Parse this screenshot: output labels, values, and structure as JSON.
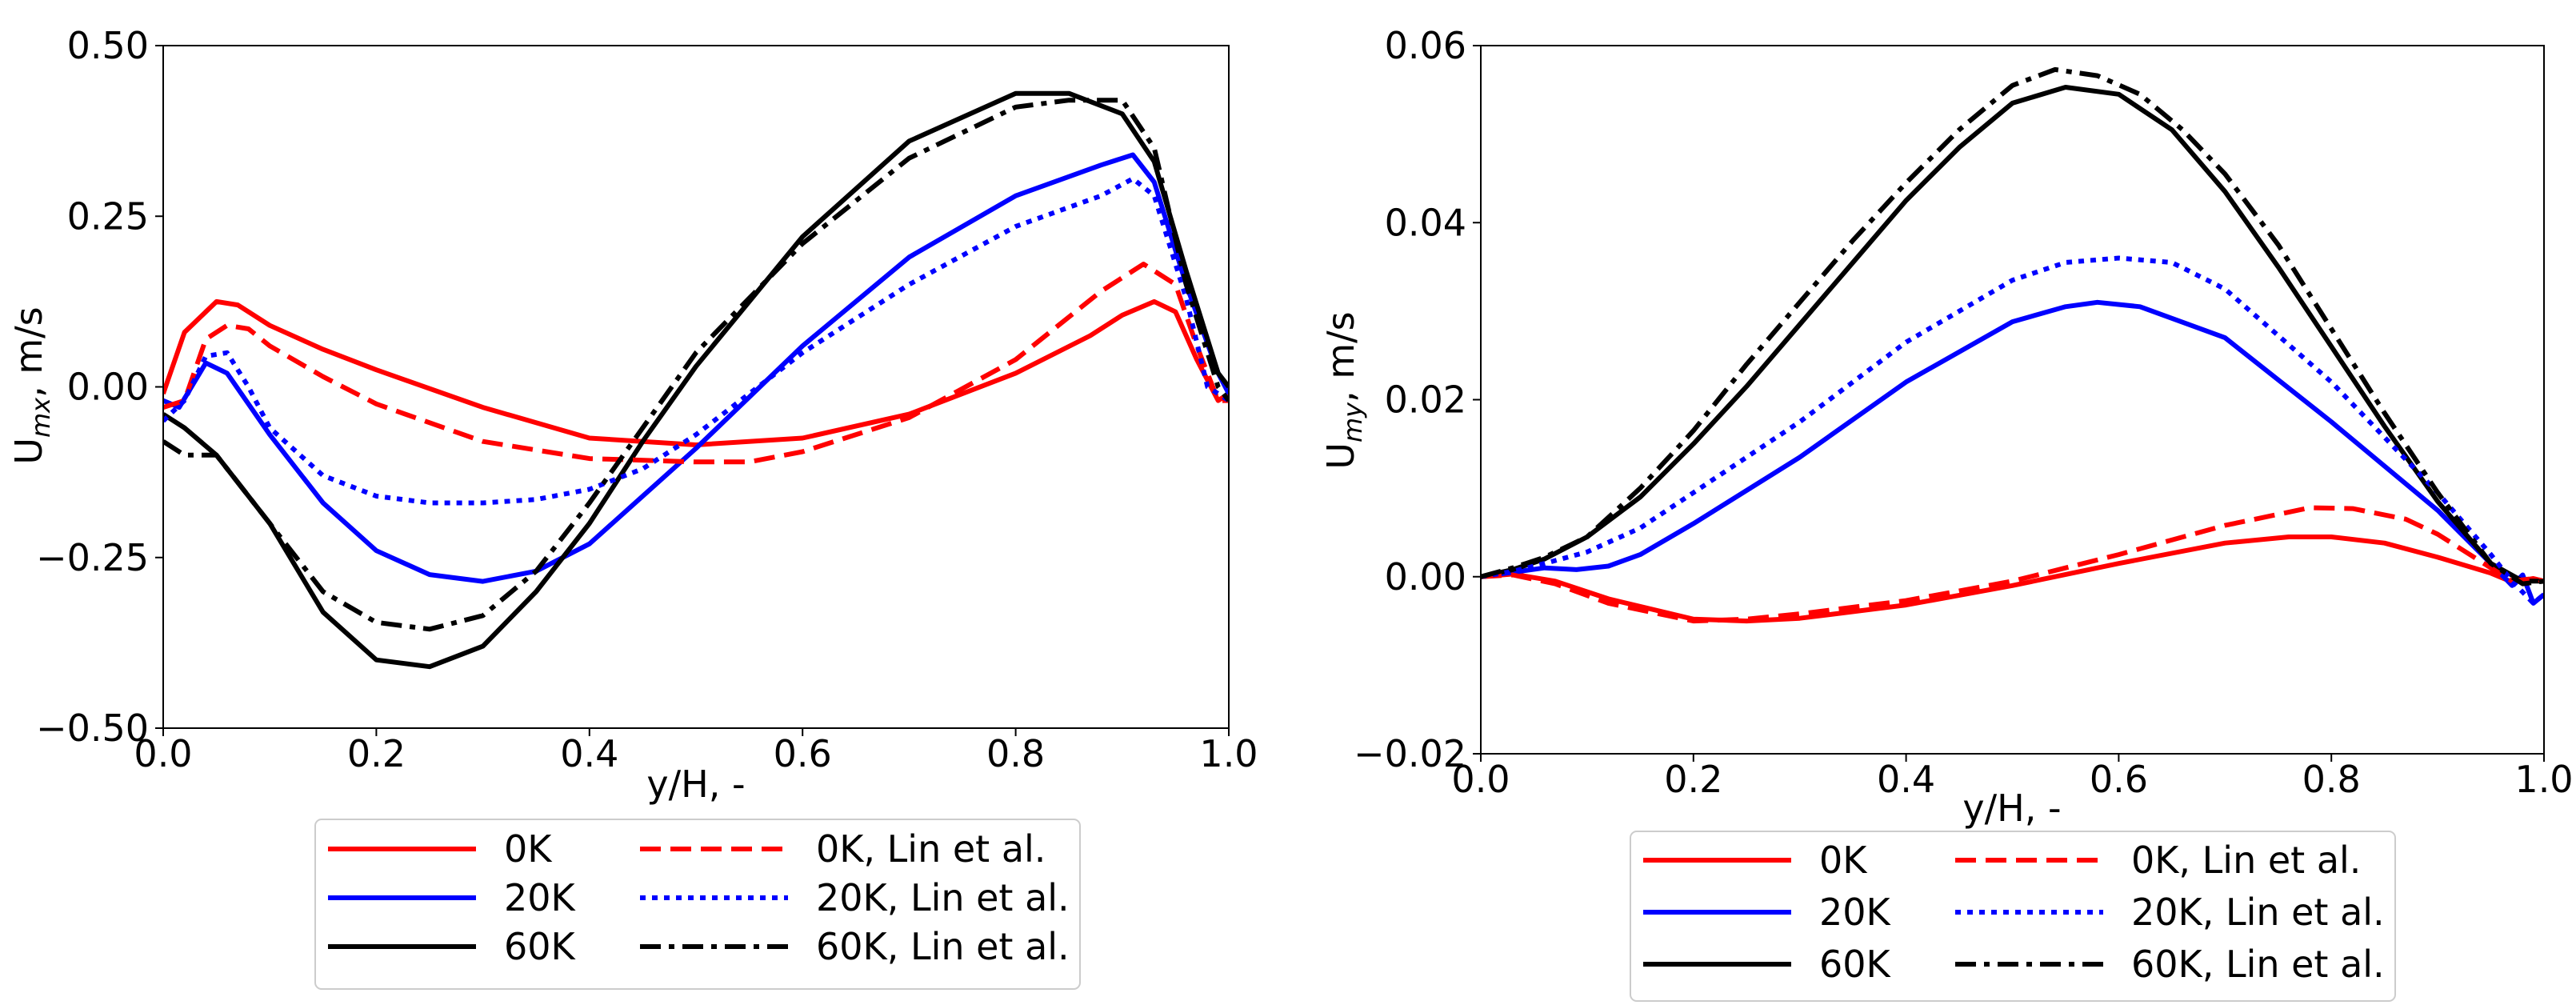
{
  "chart_data": [
    {
      "type": "line",
      "xlabel": "y/H, -",
      "ylabel_main": "U",
      "ylabel_sub": "mx",
      "ylabel_tail": ", m/s",
      "xlim": [
        0.0,
        1.0
      ],
      "ylim": [
        -0.5,
        0.5
      ],
      "xticks": [
        0.0,
        0.2,
        0.4,
        0.6,
        0.8,
        1.0
      ],
      "xtick_labels": [
        "0.0",
        "0.2",
        "0.4",
        "0.6",
        "0.8",
        "1.0"
      ],
      "yticks": [
        -0.5,
        -0.25,
        0.0,
        0.25,
        0.5
      ],
      "ytick_labels": [
        "−0.50",
        "−0.25",
        "0.00",
        "0.25",
        "0.50"
      ],
      "series": [
        {
          "name": "0K",
          "color": "#ff0000",
          "style": "solid",
          "x": [
            0,
            0.02,
            0.05,
            0.07,
            0.1,
            0.15,
            0.2,
            0.3,
            0.4,
            0.5,
            0.6,
            0.7,
            0.8,
            0.87,
            0.9,
            0.93,
            0.95,
            0.97,
            0.99,
            1.0
          ],
          "y": [
            -0.01,
            0.08,
            0.125,
            0.12,
            0.09,
            0.055,
            0.025,
            -0.03,
            -0.075,
            -0.085,
            -0.075,
            -0.04,
            0.02,
            0.075,
            0.105,
            0.125,
            0.11,
            0.04,
            -0.02,
            -0.01
          ]
        },
        {
          "name": "20K",
          "color": "#0000ff",
          "style": "solid",
          "x": [
            0,
            0.015,
            0.04,
            0.06,
            0.1,
            0.15,
            0.2,
            0.25,
            0.3,
            0.35,
            0.4,
            0.5,
            0.6,
            0.7,
            0.8,
            0.88,
            0.91,
            0.93,
            0.96,
            0.99,
            1.0
          ],
          "y": [
            -0.02,
            -0.03,
            0.035,
            0.02,
            -0.07,
            -0.17,
            -0.24,
            -0.275,
            -0.285,
            -0.27,
            -0.23,
            -0.09,
            0.06,
            0.19,
            0.28,
            0.325,
            0.34,
            0.3,
            0.15,
            0.02,
            -0.01
          ]
        },
        {
          "name": "60K",
          "color": "#000000",
          "style": "solid",
          "x": [
            0,
            0.02,
            0.05,
            0.1,
            0.15,
            0.2,
            0.25,
            0.3,
            0.35,
            0.4,
            0.45,
            0.5,
            0.6,
            0.7,
            0.8,
            0.85,
            0.9,
            0.93,
            0.96,
            0.99,
            1.0
          ],
          "y": [
            -0.04,
            -0.06,
            -0.1,
            -0.2,
            -0.33,
            -0.4,
            -0.41,
            -0.38,
            -0.3,
            -0.2,
            -0.08,
            0.03,
            0.22,
            0.36,
            0.43,
            0.43,
            0.4,
            0.33,
            0.17,
            0.02,
            0.0
          ]
        },
        {
          "name": "0K, Lin et al.",
          "color": "#ff0000",
          "style": "dashed",
          "x": [
            0,
            0.02,
            0.04,
            0.06,
            0.08,
            0.1,
            0.15,
            0.2,
            0.3,
            0.4,
            0.5,
            0.55,
            0.6,
            0.7,
            0.8,
            0.88,
            0.92,
            0.95,
            0.97,
            0.99,
            1.0
          ],
          "y": [
            -0.03,
            -0.02,
            0.07,
            0.09,
            0.085,
            0.06,
            0.015,
            -0.025,
            -0.08,
            -0.105,
            -0.11,
            -0.11,
            -0.095,
            -0.045,
            0.04,
            0.14,
            0.18,
            0.15,
            0.06,
            -0.02,
            -0.02
          ]
        },
        {
          "name": "20K, Lin et al.",
          "color": "#0000ff",
          "style": "dotted",
          "x": [
            0,
            0.02,
            0.04,
            0.06,
            0.08,
            0.1,
            0.15,
            0.2,
            0.25,
            0.3,
            0.35,
            0.4,
            0.45,
            0.5,
            0.6,
            0.7,
            0.8,
            0.88,
            0.91,
            0.93,
            0.96,
            0.98,
            1.0
          ],
          "y": [
            -0.05,
            -0.02,
            0.045,
            0.05,
            0.0,
            -0.06,
            -0.13,
            -0.16,
            -0.17,
            -0.17,
            -0.165,
            -0.15,
            -0.12,
            -0.07,
            0.05,
            0.15,
            0.235,
            0.28,
            0.305,
            0.28,
            0.13,
            0.0,
            -0.02
          ]
        },
        {
          "name": "60K, Lin et al.",
          "color": "#000000",
          "style": "dashdot",
          "x": [
            0,
            0.02,
            0.05,
            0.1,
            0.15,
            0.2,
            0.25,
            0.3,
            0.35,
            0.4,
            0.45,
            0.5,
            0.6,
            0.7,
            0.8,
            0.85,
            0.9,
            0.93,
            0.96,
            0.99,
            1.0
          ],
          "y": [
            -0.08,
            -0.1,
            -0.1,
            -0.2,
            -0.3,
            -0.345,
            -0.355,
            -0.335,
            -0.27,
            -0.17,
            -0.06,
            0.05,
            0.21,
            0.335,
            0.41,
            0.42,
            0.42,
            0.35,
            0.15,
            0.0,
            -0.02
          ]
        }
      ],
      "legend": {
        "position": "bottom",
        "entries": [
          "0K",
          "20K",
          "60K",
          "0K, Lin et al.",
          "20K, Lin et al.",
          "60K, Lin et al."
        ]
      }
    },
    {
      "type": "line",
      "xlabel": "y/H, -",
      "ylabel_main": "U",
      "ylabel_sub": "my",
      "ylabel_tail": ", m/s",
      "xlim": [
        0.0,
        1.0
      ],
      "ylim": [
        -0.02,
        0.06
      ],
      "xticks": [
        0.0,
        0.2,
        0.4,
        0.6,
        0.8,
        1.0
      ],
      "xtick_labels": [
        "0.0",
        "0.2",
        "0.4",
        "0.6",
        "0.8",
        "1.0"
      ],
      "yticks": [
        -0.02,
        0.0,
        0.02,
        0.04,
        0.06
      ],
      "ytick_labels": [
        "−0.02",
        "0.00",
        "0.02",
        "0.04",
        "0.06"
      ],
      "series": [
        {
          "name": "0K",
          "color": "#ff0000",
          "style": "solid",
          "x": [
            0,
            0.03,
            0.07,
            0.12,
            0.2,
            0.25,
            0.3,
            0.4,
            0.5,
            0.6,
            0.7,
            0.76,
            0.8,
            0.85,
            0.9,
            0.95,
            0.97,
            0.99,
            1.0
          ],
          "y": [
            0,
            0.0003,
            -0.0005,
            -0.0025,
            -0.0048,
            -0.005,
            -0.0047,
            -0.0032,
            -0.001,
            0.0015,
            0.0038,
            0.0045,
            0.0045,
            0.0038,
            0.0022,
            0.0004,
            -0.0006,
            -0.0002,
            -0.0005
          ]
        },
        {
          "name": "20K",
          "color": "#0000ff",
          "style": "solid",
          "x": [
            0,
            0.03,
            0.06,
            0.09,
            0.12,
            0.15,
            0.2,
            0.3,
            0.4,
            0.5,
            0.55,
            0.58,
            0.62,
            0.7,
            0.8,
            0.9,
            0.95,
            0.97,
            0.98,
            0.99,
            1.0
          ],
          "y": [
            0,
            0.0005,
            0.001,
            0.0008,
            0.0012,
            0.0025,
            0.006,
            0.0135,
            0.022,
            0.0288,
            0.0305,
            0.031,
            0.0305,
            0.027,
            0.0175,
            0.0075,
            0.0015,
            -0.001,
            0.0002,
            -0.003,
            -0.002
          ]
        },
        {
          "name": "60K",
          "color": "#000000",
          "style": "solid",
          "x": [
            0,
            0.03,
            0.06,
            0.1,
            0.15,
            0.2,
            0.25,
            0.3,
            0.35,
            0.4,
            0.45,
            0.5,
            0.55,
            0.6,
            0.65,
            0.7,
            0.75,
            0.8,
            0.85,
            0.9,
            0.95,
            0.98,
            1.0
          ],
          "y": [
            0,
            0.0008,
            0.002,
            0.0045,
            0.009,
            0.015,
            0.0215,
            0.0285,
            0.0355,
            0.0425,
            0.0485,
            0.0535,
            0.0553,
            0.0545,
            0.0505,
            0.0435,
            0.035,
            0.026,
            0.017,
            0.0085,
            0.0015,
            -0.0005,
            -0.0005
          ]
        },
        {
          "name": "0K, Lin et al.",
          "color": "#ff0000",
          "style": "dashed",
          "x": [
            0,
            0.03,
            0.07,
            0.12,
            0.2,
            0.25,
            0.3,
            0.4,
            0.5,
            0.6,
            0.7,
            0.78,
            0.82,
            0.87,
            0.9,
            0.95,
            0.97,
            0.99,
            1.0
          ],
          "y": [
            0,
            0.0002,
            -0.0008,
            -0.003,
            -0.005,
            -0.0048,
            -0.0042,
            -0.0027,
            -0.0005,
            0.0025,
            0.0058,
            0.0078,
            0.0077,
            0.0065,
            0.0048,
            0.001,
            -0.0005,
            -0.0002,
            -0.0005
          ]
        },
        {
          "name": "20K, Lin et al.",
          "color": "#0000ff",
          "style": "dotted",
          "x": [
            0,
            0.03,
            0.06,
            0.1,
            0.15,
            0.2,
            0.3,
            0.4,
            0.5,
            0.55,
            0.6,
            0.65,
            0.7,
            0.8,
            0.9,
            0.95,
            0.97,
            0.99,
            1.0
          ],
          "y": [
            0,
            0.0006,
            0.0015,
            0.0028,
            0.0055,
            0.0095,
            0.0175,
            0.0265,
            0.0335,
            0.0355,
            0.036,
            0.0355,
            0.0325,
            0.022,
            0.0095,
            0.0025,
            -0.0005,
            -0.003,
            -0.002
          ]
        },
        {
          "name": "60K, Lin et al.",
          "color": "#000000",
          "style": "dashdot",
          "x": [
            0,
            0.03,
            0.06,
            0.1,
            0.15,
            0.2,
            0.25,
            0.3,
            0.35,
            0.4,
            0.45,
            0.5,
            0.54,
            0.58,
            0.62,
            0.66,
            0.7,
            0.75,
            0.8,
            0.85,
            0.9,
            0.95,
            0.98,
            1.0
          ],
          "y": [
            0,
            0.001,
            0.0022,
            0.0045,
            0.01,
            0.0165,
            0.024,
            0.031,
            0.038,
            0.0445,
            0.0505,
            0.0555,
            0.0573,
            0.0566,
            0.0545,
            0.0505,
            0.0455,
            0.0375,
            0.028,
            0.0185,
            0.0095,
            0.0015,
            -0.0008,
            -0.0005
          ]
        }
      ],
      "legend": {
        "position": "bottom",
        "entries": [
          "0K",
          "20K",
          "60K",
          "0K, Lin et al.",
          "20K, Lin et al.",
          "60K, Lin et al."
        ]
      }
    }
  ]
}
